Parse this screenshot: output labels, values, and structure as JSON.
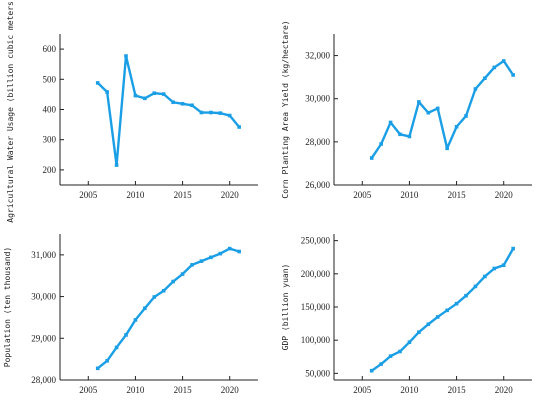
{
  "colors": {
    "series": "#1a9fe6",
    "axis": "#222222"
  },
  "chart_data": [
    {
      "type": "line",
      "ylabel": "Agricultural Water Usage (billion cubic meters)",
      "x": [
        2006,
        2007,
        2008,
        2009,
        2010,
        2011,
        2012,
        2013,
        2014,
        2015,
        2016,
        2017,
        2018,
        2019,
        2020,
        2021
      ],
      "y": [
        488,
        458,
        216,
        577,
        446,
        437,
        454,
        451,
        424,
        419,
        414,
        390,
        390,
        388,
        380,
        342
      ],
      "xlim": [
        2002,
        2023
      ],
      "ylim": [
        150,
        650
      ],
      "xticks": [
        2005,
        2010,
        2015,
        2020
      ],
      "yticks": [
        200,
        300,
        400,
        500,
        600
      ],
      "ytick_labels": [
        "200",
        "300",
        "400",
        "500",
        "600"
      ]
    },
    {
      "type": "line",
      "ylabel": "Corn Planting Area Yield (kg/hectare)",
      "x": [
        2006,
        2007,
        2008,
        2009,
        2010,
        2011,
        2012,
        2013,
        2014,
        2015,
        2016,
        2017,
        2018,
        2019,
        2020,
        2021
      ],
      "y": [
        27250,
        27900,
        28900,
        28350,
        28250,
        29850,
        29350,
        29550,
        27700,
        28700,
        29200,
        30450,
        30950,
        31450,
        31750,
        31100
      ],
      "xlim": [
        2002,
        2023
      ],
      "ylim": [
        26000,
        33000
      ],
      "xticks": [
        2005,
        2010,
        2015,
        2020
      ],
      "yticks": [
        26000,
        28000,
        30000,
        32000
      ],
      "ytick_labels": [
        "26,000",
        "28,000",
        "30,000",
        "32,000"
      ]
    },
    {
      "type": "line",
      "ylabel": "Population (ten thousand)",
      "x": [
        2006,
        2007,
        2008,
        2009,
        2010,
        2011,
        2012,
        2013,
        2014,
        2015,
        2016,
        2017,
        2018,
        2019,
        2020,
        2021
      ],
      "y": [
        28280,
        28460,
        28780,
        29080,
        29440,
        29720,
        29990,
        30140,
        30360,
        30540,
        30760,
        30850,
        30940,
        31030,
        31150,
        31080
      ],
      "xlim": [
        2002,
        2023
      ],
      "ylim": [
        28000,
        31500
      ],
      "xticks": [
        2005,
        2010,
        2015,
        2020
      ],
      "yticks": [
        28000,
        29000,
        30000,
        31000
      ],
      "ytick_labels": [
        "28,000",
        "29,000",
        "30,000",
        "31,000"
      ]
    },
    {
      "type": "line",
      "ylabel": "GDP (billion yuan)",
      "x": [
        2006,
        2007,
        2008,
        2009,
        2010,
        2011,
        2012,
        2013,
        2014,
        2015,
        2016,
        2017,
        2018,
        2019,
        2020,
        2021
      ],
      "y": [
        54000,
        64000,
        76000,
        83000,
        97000,
        112000,
        124000,
        135000,
        145000,
        155000,
        167000,
        181000,
        196000,
        208000,
        213000,
        238000
      ],
      "xlim": [
        2002,
        2023
      ],
      "ylim": [
        40000,
        260000
      ],
      "xticks": [
        2005,
        2010,
        2015,
        2020
      ],
      "yticks": [
        50000,
        100000,
        150000,
        200000,
        250000
      ],
      "ytick_labels": [
        "50,000",
        "100,000",
        "150,000",
        "200,000",
        "250,000"
      ]
    }
  ]
}
